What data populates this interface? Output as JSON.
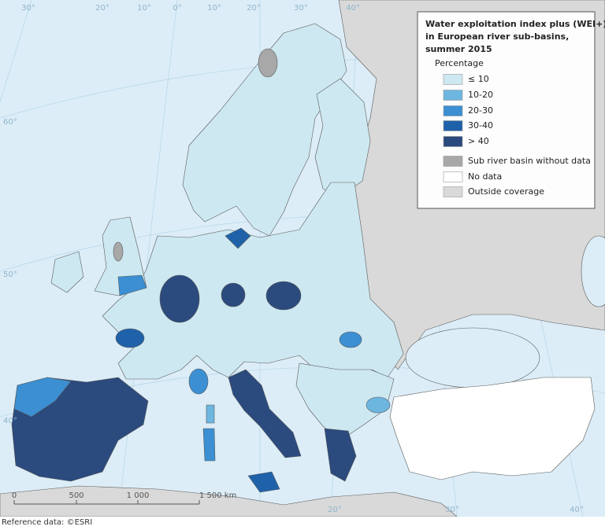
{
  "map": {
    "title": [
      "Water exploitation index plus (WEI+)",
      "in European river sub-basins,",
      "summer 2015"
    ],
    "legend": {
      "heading": "Percentage",
      "items": [
        {
          "label": "≤ 10",
          "color": "#cde8f1"
        },
        {
          "label": "10-20",
          "color": "#6db6e0"
        },
        {
          "label": "20-30",
          "color": "#3b8fd2"
        },
        {
          "label": "30-40",
          "color": "#1f62aa"
        },
        {
          "label": "> 40",
          "color": "#2b4a7e"
        },
        {
          "label": "Sub river basin without data",
          "color": "#a8a8a8"
        },
        {
          "label": "No data",
          "color": "#ffffff"
        },
        {
          "label": "Outside coverage",
          "color": "#d9d9d9"
        }
      ]
    },
    "scale_bar": {
      "labels": [
        "0",
        "500",
        "1 000",
        "1 500 km"
      ]
    },
    "graticule_labels": {
      "top": [
        "30°",
        "20°",
        "10°",
        "0°",
        "10°",
        "20°",
        "30°",
        "40°"
      ],
      "left": [
        "60°",
        "50°",
        "40°"
      ],
      "bottom": [
        "20°",
        "30°",
        "40°"
      ]
    }
  },
  "footer": "Reference data: ©ESRI"
}
